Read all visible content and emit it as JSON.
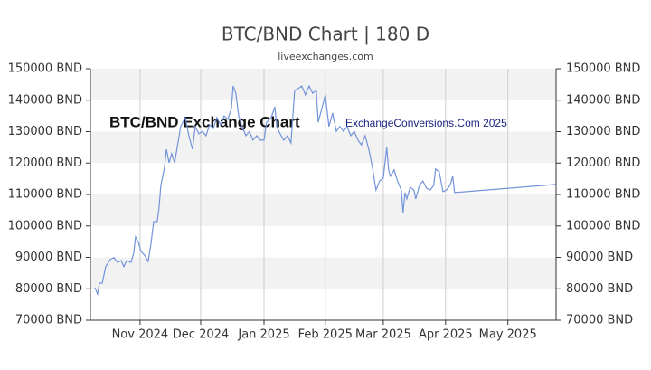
{
  "chart_data": {
    "type": "line",
    "title": "BTC/BND Chart | 180 D",
    "subtitle": "liveexchanges.com",
    "annotations": [
      "BTC/BND Exchange Chart",
      "ExchangeConversions.Com 2025"
    ],
    "x": [
      2.2,
      3.5,
      4.4,
      5.8,
      7.5,
      9.7,
      11.5,
      13.3,
      15.0,
      16.4,
      17.7,
      19.9,
      21.2,
      22.1,
      23.5,
      24.8,
      26.5,
      28.3,
      29.6,
      31.0,
      32.7,
      33.6,
      34.5,
      36.3,
      37.2,
      38.5,
      39.8,
      41.2,
      42.5,
      44.2,
      46.5,
      48.2,
      50.0,
      51.3,
      53.1,
      54.9,
      56.6,
      58.4,
      60.2,
      61.9,
      63.7,
      65.5,
      67.3,
      69.0,
      69.9,
      71.2,
      72.6,
      74.3,
      76.1,
      77.9,
      79.6,
      81.4,
      83.2,
      85.0,
      86.3,
      88.5,
      90.3,
      91.2,
      92.9,
      94.7,
      96.5,
      98.2,
      100.0,
      101.8,
      103.5,
      105.3,
      107.1,
      108.8,
      110.6,
      111.5,
      113.3,
      115.0,
      116.8,
      118.6,
      120.4,
      122.1,
      123.9,
      125.7,
      127.4,
      129.2,
      131.0,
      132.7,
      134.5,
      136.3,
      138.1,
      139.8,
      141.6,
      143.4,
      145.1,
      146.0,
      146.9,
      148.7,
      150.4,
      152.2,
      153.1,
      154.0,
      154.9,
      156.6,
      158.4,
      159.3,
      161.1,
      162.8,
      164.6,
      166.4,
      168.1,
      169.0,
      170.8,
      172.6,
      174.3,
      176.1,
      177.4,
      178.3,
      227.9
    ],
    "series": [
      {
        "name": "BTC/BND",
        "color": "#7393db",
        "values": [
          80400,
          78300,
          81800,
          81800,
          87000,
          89300,
          89900,
          88400,
          89000,
          87000,
          89000,
          88400,
          91300,
          96500,
          94800,
          91900,
          90700,
          88700,
          94200,
          101400,
          101400,
          105700,
          112900,
          118700,
          124400,
          120100,
          123000,
          120100,
          125000,
          131600,
          134500,
          128700,
          124400,
          131600,
          129300,
          130100,
          128700,
          132200,
          131000,
          134500,
          132200,
          135000,
          133900,
          137300,
          144500,
          142200,
          135000,
          131600,
          128700,
          130100,
          127300,
          128700,
          127300,
          127300,
          133000,
          134500,
          137900,
          131600,
          129300,
          127300,
          128700,
          126400,
          143100,
          143700,
          144500,
          141700,
          144500,
          142200,
          143100,
          133000,
          137300,
          141700,
          131600,
          135900,
          130100,
          131600,
          130100,
          131600,
          128700,
          130100,
          127300,
          125800,
          128700,
          124400,
          118700,
          111400,
          114300,
          115200,
          125000,
          117800,
          115800,
          117800,
          114300,
          111400,
          104200,
          110600,
          108600,
          112300,
          111400,
          108600,
          112900,
          114300,
          112000,
          111400,
          112900,
          118100,
          117200,
          110900,
          111400,
          112900,
          115800,
          110600,
          113200
        ]
      }
    ],
    "xlim": [
      0,
      228
    ],
    "xticks": [
      {
        "value": 24.3,
        "label": "Nov 2024"
      },
      {
        "value": 54.0,
        "label": "Dec 2024"
      },
      {
        "value": 85.0,
        "label": "Jan 2025"
      },
      {
        "value": 115.0,
        "label": "Feb 2025"
      },
      {
        "value": 143.4,
        "label": "Mar 2025"
      },
      {
        "value": 173.9,
        "label": "Apr 2025"
      },
      {
        "value": 204.4,
        "label": "May 2025"
      }
    ],
    "ylim": [
      70000,
      150000
    ],
    "yticks": [
      {
        "value": 70000,
        "label": "70000 BND"
      },
      {
        "value": 80000,
        "label": "80000 BND"
      },
      {
        "value": 90000,
        "label": "90000 BND"
      },
      {
        "value": 100000,
        "label": "100000 BND"
      },
      {
        "value": 110000,
        "label": "110000 BND"
      },
      {
        "value": 120000,
        "label": "120000 BND"
      },
      {
        "value": 130000,
        "label": "130000 BND"
      },
      {
        "value": 140000,
        "label": "140000 BND"
      },
      {
        "value": 150000,
        "label": "150000 BND"
      }
    ],
    "y2lim": [
      70000,
      150000
    ],
    "y2ticks": [
      {
        "value": 70000,
        "label": "70000 BND"
      },
      {
        "value": 80000,
        "label": "80000 BND"
      },
      {
        "value": 90000,
        "label": "90000 BND"
      },
      {
        "value": 100000,
        "label": "100000 BND"
      },
      {
        "value": 110000,
        "label": "110000 BND"
      },
      {
        "value": 120000,
        "label": "120000 BND"
      },
      {
        "value": 130000,
        "label": "130000 BND"
      },
      {
        "value": 140000,
        "label": "140000 BND"
      },
      {
        "value": 150000,
        "label": "150000 BND"
      }
    ],
    "grid": true,
    "band_color": "#f2f2f2"
  }
}
